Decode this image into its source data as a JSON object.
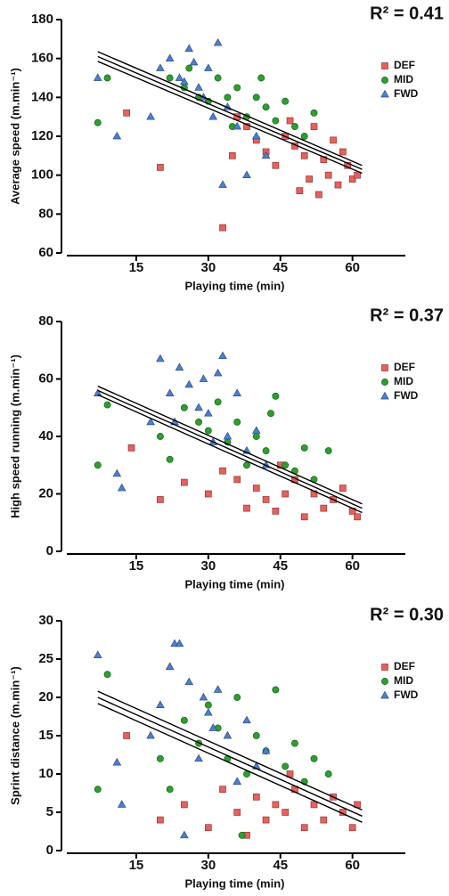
{
  "chart_data": [
    {
      "type": "scatter",
      "x_label": "Playing time (min)",
      "y_label": "Average speed (m.min⁻¹)",
      "annotation": "R² = 0.41",
      "xlim": [
        0,
        71
      ],
      "xticks": [
        15,
        30,
        45,
        60
      ],
      "ylim": [
        60,
        180
      ],
      "yticks": [
        60,
        80,
        100,
        120,
        140,
        160,
        180
      ],
      "legend": "right",
      "series": [
        {
          "name": "DEF",
          "color": "#e8605c",
          "marker": "square",
          "x": [
            13,
            20,
            33,
            35,
            38,
            40,
            42,
            44,
            46,
            48,
            50,
            51,
            52,
            53,
            54,
            55,
            56,
            57,
            58,
            59,
            60,
            61,
            36,
            47,
            49
          ],
          "values": [
            132,
            104,
            73,
            110,
            125,
            118,
            112,
            105,
            120,
            115,
            110,
            98,
            125,
            90,
            108,
            100,
            118,
            95,
            112,
            105,
            98,
            100,
            130,
            128,
            92
          ]
        },
        {
          "name": "MID",
          "color": "#2ca02c",
          "marker": "circle",
          "x": [
            7,
            9,
            22,
            25,
            28,
            30,
            32,
            34,
            36,
            38,
            40,
            42,
            44,
            46,
            48,
            50,
            52,
            26,
            35,
            41
          ],
          "values": [
            127,
            150,
            150,
            145,
            140,
            138,
            150,
            140,
            145,
            130,
            140,
            135,
            128,
            138,
            125,
            120,
            132,
            155,
            125,
            150
          ]
        },
        {
          "name": "FWD",
          "color": "#4a7fd4",
          "marker": "triangle",
          "x": [
            7,
            11,
            18,
            20,
            22,
            24,
            26,
            27,
            28,
            29,
            30,
            31,
            32,
            34,
            36,
            38,
            40,
            42,
            25,
            33
          ],
          "values": [
            150,
            120,
            130,
            155,
            160,
            150,
            165,
            158,
            145,
            140,
            155,
            130,
            168,
            135,
            125,
            100,
            120,
            110,
            148,
            95
          ]
        }
      ],
      "regression": {
        "x": [
          7,
          62
        ],
        "fit": [
          161,
          103
        ],
        "upper": [
          163.5,
          105
        ],
        "lower": [
          158.5,
          101
        ]
      }
    },
    {
      "type": "scatter",
      "x_label": "Playing time (min)",
      "y_label": "High speed running (m.min⁻¹)",
      "annotation": "R² = 0.37",
      "xlim": [
        0,
        71
      ],
      "xticks": [
        15,
        30,
        45,
        60
      ],
      "ylim": [
        0,
        80
      ],
      "yticks": [
        0,
        20,
        40,
        60,
        80
      ],
      "legend": "right",
      "series": [
        {
          "name": "DEF",
          "color": "#e8605c",
          "marker": "square",
          "x": [
            14,
            20,
            25,
            30,
            33,
            36,
            38,
            40,
            42,
            44,
            46,
            48,
            50,
            52,
            54,
            56,
            58,
            60,
            61,
            45
          ],
          "values": [
            36,
            18,
            24,
            20,
            28,
            25,
            15,
            22,
            18,
            14,
            20,
            25,
            12,
            20,
            15,
            18,
            22,
            14,
            12,
            30
          ]
        },
        {
          "name": "MID",
          "color": "#2ca02c",
          "marker": "circle",
          "x": [
            7,
            9,
            20,
            22,
            25,
            28,
            30,
            32,
            34,
            36,
            38,
            40,
            42,
            44,
            46,
            48,
            50,
            52,
            55,
            43
          ],
          "values": [
            30,
            51,
            40,
            32,
            50,
            45,
            42,
            52,
            38,
            45,
            30,
            40,
            35,
            54,
            30,
            28,
            36,
            25,
            35,
            48
          ]
        },
        {
          "name": "FWD",
          "color": "#4a7fd4",
          "marker": "triangle",
          "x": [
            7,
            11,
            12,
            18,
            20,
            22,
            24,
            26,
            28,
            30,
            32,
            33,
            34,
            36,
            38,
            40,
            42,
            23,
            29,
            31
          ],
          "values": [
            55,
            27,
            22,
            45,
            67,
            55,
            64,
            58,
            50,
            48,
            62,
            68,
            40,
            55,
            35,
            42,
            30,
            45,
            60,
            38
          ]
        }
      ],
      "regression": {
        "x": [
          7,
          62
        ],
        "fit": [
          56,
          15
        ],
        "upper": [
          57.5,
          16.5
        ],
        "lower": [
          54.5,
          13.5
        ]
      }
    },
    {
      "type": "scatter",
      "x_label": "Playing time (min)",
      "y_label": "Sprint distance (m.min⁻¹)",
      "annotation": "R² = 0.30",
      "xlim": [
        0,
        71
      ],
      "xticks": [
        15,
        30,
        45,
        60
      ],
      "ylim": [
        0,
        30
      ],
      "yticks": [
        0,
        5,
        10,
        15,
        20,
        25,
        30
      ],
      "legend": "right",
      "series": [
        {
          "name": "DEF",
          "color": "#e8605c",
          "marker": "square",
          "x": [
            13,
            20,
            25,
            30,
            33,
            36,
            38,
            40,
            42,
            44,
            46,
            48,
            50,
            52,
            54,
            56,
            58,
            60,
            61,
            47
          ],
          "values": [
            15,
            4,
            6,
            3,
            8,
            5,
            2,
            7,
            4,
            6,
            5,
            8,
            3,
            6,
            4,
            7,
            5,
            3,
            6,
            10
          ]
        },
        {
          "name": "MID",
          "color": "#2ca02c",
          "marker": "circle",
          "x": [
            7,
            9,
            20,
            22,
            25,
            28,
            30,
            32,
            34,
            36,
            38,
            40,
            42,
            44,
            46,
            48,
            50,
            52,
            55,
            37
          ],
          "values": [
            8,
            23,
            12,
            8,
            17,
            14,
            19,
            16,
            12,
            20,
            10,
            15,
            13,
            21,
            11,
            14,
            9,
            12,
            10,
            2
          ]
        },
        {
          "name": "FWD",
          "color": "#4a7fd4",
          "marker": "triangle",
          "x": [
            7,
            11,
            12,
            18,
            20,
            22,
            23,
            24,
            26,
            28,
            30,
            32,
            34,
            36,
            38,
            40,
            42,
            25,
            29,
            31
          ],
          "values": [
            25.5,
            11.5,
            6,
            15,
            19,
            24,
            27,
            27,
            22,
            12,
            18,
            21,
            15,
            9,
            17,
            11,
            13,
            2,
            20,
            16
          ]
        }
      ],
      "regression": {
        "x": [
          7,
          62
        ],
        "fit": [
          20,
          4.5
        ],
        "upper": [
          20.8,
          5.3
        ],
        "lower": [
          19.2,
          3.7
        ]
      }
    }
  ]
}
